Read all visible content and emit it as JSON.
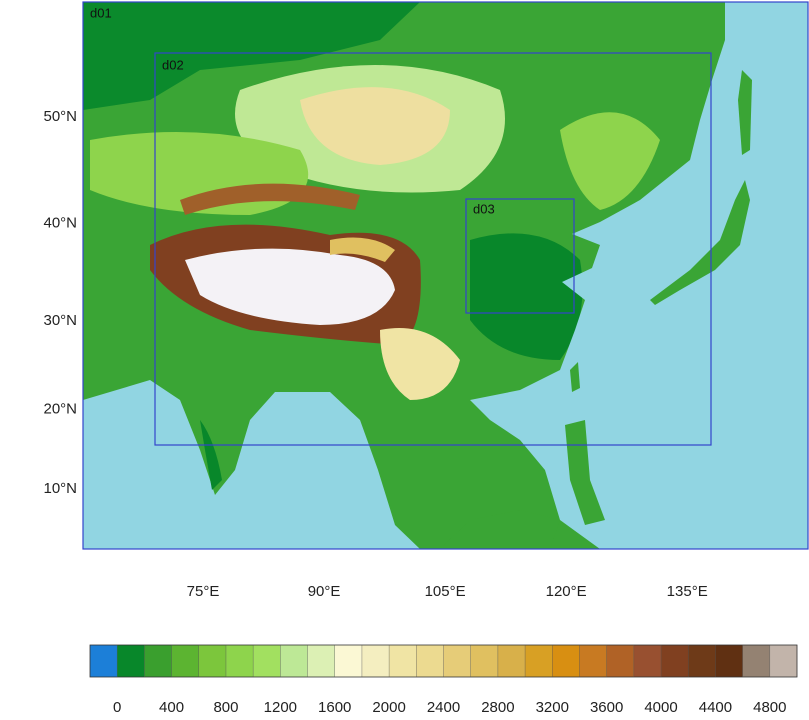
{
  "domains": [
    {
      "label": "d01"
    },
    {
      "label": "d02"
    },
    {
      "label": "d03"
    }
  ],
  "lat_ticks": [
    {
      "value": 50,
      "label": "50°N"
    },
    {
      "value": 40,
      "label": "40°N"
    },
    {
      "value": 30,
      "label": "30°N"
    },
    {
      "value": 20,
      "label": "20°N"
    },
    {
      "value": 10,
      "label": "10°N"
    }
  ],
  "lon_ticks": [
    {
      "value": 75,
      "label": "75°E"
    },
    {
      "value": 90,
      "label": "90°E"
    },
    {
      "value": 105,
      "label": "105°E"
    },
    {
      "value": 120,
      "label": "120°E"
    },
    {
      "value": 135,
      "label": "135°E"
    }
  ],
  "colorbar": {
    "range": [
      -200,
      5000
    ],
    "colors": [
      "#1c7fd8",
      "#08872a",
      "#3a9f2e",
      "#5cb431",
      "#7cc63c",
      "#8ed44c",
      "#a2e060",
      "#bde896",
      "#dcf0b4",
      "#fbf8d4",
      "#f4eec0",
      "#f0e4a4",
      "#ecda90",
      "#e6cc78",
      "#e0c060",
      "#d8b04a",
      "#d8a024",
      "#d88f12",
      "#c87a22",
      "#b06226",
      "#985030",
      "#804020",
      "#6e3a18",
      "#603012",
      "#948272",
      "#c2b4aa"
    ],
    "ticks": [
      0,
      400,
      800,
      1200,
      1600,
      2000,
      2400,
      2800,
      3200,
      3600,
      4000,
      4400,
      4800
    ]
  }
}
